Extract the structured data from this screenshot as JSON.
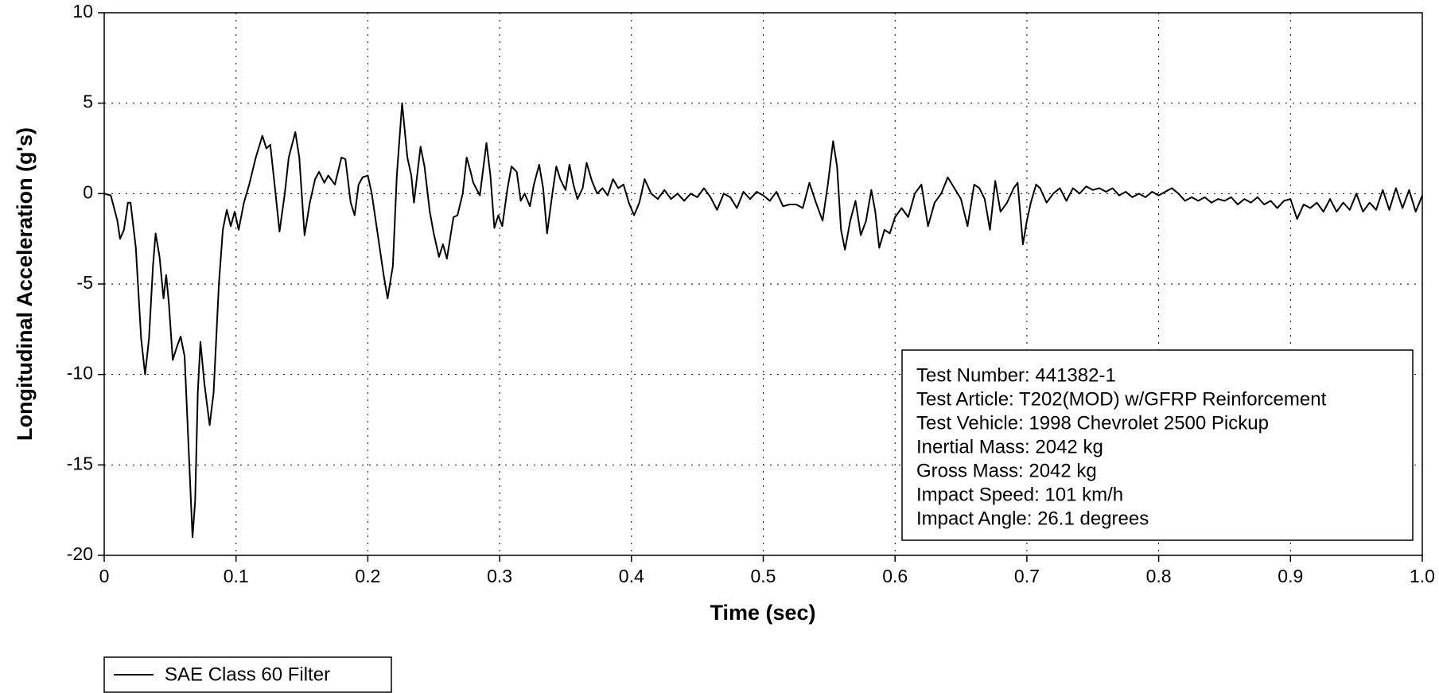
{
  "chart_data": {
    "type": "line",
    "xlabel": "Time (sec)",
    "ylabel": "Longitudinal Acceleration (g's)",
    "xlim": [
      0,
      1
    ],
    "ylim": [
      -20,
      10
    ],
    "xticks": [
      0,
      0.1,
      0.2,
      0.3,
      0.4,
      0.5,
      0.6,
      0.7,
      0.8,
      0.9,
      {
        "value": 1,
        "label": "1.0"
      }
    ],
    "yticks": [
      10,
      5,
      0,
      -5,
      -10,
      -15,
      -20
    ],
    "grid": true,
    "legend": "bottom-left",
    "annotation": [
      "Test Number: 441382-1",
      "Test Article: T202(MOD) w/GFRP Reinforcement",
      "Test Vehicle: 1998 Chevrolet 2500 Pickup",
      "Inertial Mass: 2042 kg",
      "Gross Mass: 2042 kg",
      "Impact Speed: 101 km/h",
      "Impact Angle: 26.1 degrees"
    ],
    "x": [
      0,
      0.005,
      0.01,
      0.012,
      0.015,
      0.018,
      0.02,
      0.024,
      0.028,
      0.031,
      0.034,
      0.037,
      0.039,
      0.042,
      0.045,
      0.047,
      0.049,
      0.052,
      0.055,
      0.058,
      0.061,
      0.064,
      0.067,
      0.069,
      0.071,
      0.073,
      0.076,
      0.08,
      0.083,
      0.087,
      0.09,
      0.093,
      0.096,
      0.099,
      0.102,
      0.106,
      0.11,
      0.115,
      0.12,
      0.123,
      0.126,
      0.13,
      0.133,
      0.137,
      0.14,
      0.145,
      0.148,
      0.152,
      0.156,
      0.16,
      0.163,
      0.167,
      0.17,
      0.175,
      0.18,
      0.183,
      0.187,
      0.19,
      0.193,
      0.196,
      0.2,
      0.203,
      0.207,
      0.212,
      0.215,
      0.219,
      0.222,
      0.226,
      0.23,
      0.233,
      0.235,
      0.24,
      0.243,
      0.247,
      0.25,
      0.254,
      0.257,
      0.26,
      0.265,
      0.268,
      0.272,
      0.275,
      0.278,
      0.28,
      0.285,
      0.29,
      0.293,
      0.296,
      0.299,
      0.302,
      0.306,
      0.309,
      0.313,
      0.316,
      0.319,
      0.323,
      0.326,
      0.33,
      0.333,
      0.336,
      0.34,
      0.343,
      0.346,
      0.35,
      0.353,
      0.356,
      0.359,
      0.363,
      0.366,
      0.37,
      0.374,
      0.378,
      0.382,
      0.386,
      0.39,
      0.394,
      0.398,
      0.402,
      0.406,
      0.41,
      0.415,
      0.42,
      0.425,
      0.43,
      0.435,
      0.44,
      0.445,
      0.45,
      0.455,
      0.46,
      0.465,
      0.47,
      0.475,
      0.48,
      0.485,
      0.49,
      0.495,
      0.5,
      0.505,
      0.51,
      0.515,
      0.52,
      0.525,
      0.53,
      0.535,
      0.54,
      0.545,
      0.549,
      0.553,
      0.556,
      0.559,
      0.562,
      0.566,
      0.57,
      0.574,
      0.578,
      0.582,
      0.585,
      0.588,
      0.592,
      0.596,
      0.6,
      0.605,
      0.61,
      0.615,
      0.62,
      0.625,
      0.63,
      0.635,
      0.64,
      0.645,
      0.65,
      0.655,
      0.66,
      0.664,
      0.668,
      0.672,
      0.676,
      0.68,
      0.685,
      0.69,
      0.693,
      0.697,
      0.7,
      0.703,
      0.707,
      0.71,
      0.715,
      0.72,
      0.725,
      0.73,
      0.735,
      0.74,
      0.745,
      0.75,
      0.755,
      0.76,
      0.765,
      0.77,
      0.775,
      0.78,
      0.785,
      0.79,
      0.795,
      0.8,
      0.805,
      0.81,
      0.815,
      0.82,
      0.825,
      0.83,
      0.835,
      0.84,
      0.845,
      0.85,
      0.855,
      0.86,
      0.865,
      0.87,
      0.875,
      0.88,
      0.885,
      0.89,
      0.895,
      0.9,
      0.905,
      0.91,
      0.915,
      0.92,
      0.925,
      0.93,
      0.935,
      0.94,
      0.945,
      0.95,
      0.955,
      0.96,
      0.965,
      0.97,
      0.975,
      0.98,
      0.985,
      0.99,
      0.995,
      1.0
    ],
    "series": [
      {
        "name": "SAE Class 60 Filter",
        "color": "#000000",
        "values": [
          0,
          -0.1,
          -1.5,
          -2.5,
          -2,
          -0.5,
          -0.5,
          -3,
          -8,
          -10,
          -8,
          -4,
          -2.2,
          -3.5,
          -5.8,
          -4.5,
          -6,
          -9.2,
          -8.5,
          -7.9,
          -9,
          -14,
          -19,
          -17,
          -11,
          -8.2,
          -10.5,
          -12.8,
          -11,
          -5,
          -2,
          -0.9,
          -1.8,
          -1,
          -2,
          -0.5,
          0.5,
          2,
          3.2,
          2.5,
          2.7,
          0,
          -2.1,
          0,
          2,
          3.4,
          2,
          -2.3,
          -0.5,
          0.8,
          1.2,
          0.6,
          1,
          0.5,
          2,
          1.9,
          -0.5,
          -1.2,
          0.5,
          0.9,
          1,
          0,
          -2,
          -4.5,
          -5.8,
          -4,
          1,
          5,
          2,
          1,
          -0.5,
          2.6,
          1.5,
          -1,
          -2.2,
          -3.5,
          -2.8,
          -3.6,
          -1.3,
          -1.2,
          0,
          2,
          1.2,
          0.6,
          -0.1,
          2.8,
          1,
          -1.9,
          -1.2,
          -1.8,
          0.3,
          1.5,
          1.2,
          -0.4,
          0,
          -0.7,
          0.5,
          1.6,
          0.3,
          -2.2,
          0,
          1.5,
          0.8,
          0.2,
          1.6,
          0.5,
          -0.3,
          0.3,
          1.7,
          0.7,
          0,
          0.3,
          -0.1,
          0.8,
          0.3,
          0.5,
          -0.5,
          -1.2,
          -0.5,
          0.8,
          0,
          -0.3,
          0.2,
          -0.3,
          0,
          -0.4,
          0,
          -0.2,
          0.3,
          -0.2,
          -0.9,
          0,
          -0.2,
          -0.8,
          0.1,
          -0.3,
          0.1,
          -0.1,
          -0.4,
          0.1,
          -0.7,
          -0.6,
          -0.6,
          -0.8,
          0.6,
          -0.5,
          -1.5,
          0.5,
          2.9,
          1.5,
          -2,
          -3.1,
          -1.5,
          -0.4,
          -2.3,
          -1.5,
          0.2,
          -1,
          -3,
          -2,
          -2.2,
          -1.3,
          -0.8,
          -1.3,
          0,
          0.5,
          -1.8,
          -0.5,
          0,
          0.9,
          0.3,
          -0.3,
          -1.8,
          0.5,
          0.3,
          -0.3,
          -2,
          0.7,
          -1,
          -0.5,
          0.3,
          0.6,
          -2.8,
          -1.5,
          -0.5,
          0.5,
          0.3,
          -0.5,
          0,
          0.3,
          -0.4,
          0.3,
          0,
          0.4,
          0.2,
          0.3,
          0.1,
          0.3,
          -0.1,
          0.1,
          -0.2,
          0,
          -0.2,
          0.1,
          -0.1,
          0.1,
          0.3,
          0,
          -0.4,
          -0.2,
          -0.4,
          -0.2,
          -0.5,
          -0.3,
          -0.4,
          -0.2,
          -0.6,
          -0.3,
          -0.5,
          -0.2,
          -0.6,
          -0.4,
          -0.8,
          -0.4,
          -0.3,
          -1.4,
          -0.6,
          -0.8,
          -0.5,
          -1,
          -0.3,
          -1,
          -0.5,
          -0.9,
          0,
          -1,
          -0.5,
          -0.9,
          0.2,
          -0.9,
          0.3,
          -0.8,
          0.2,
          -1,
          -0.1
        ]
      }
    ]
  }
}
